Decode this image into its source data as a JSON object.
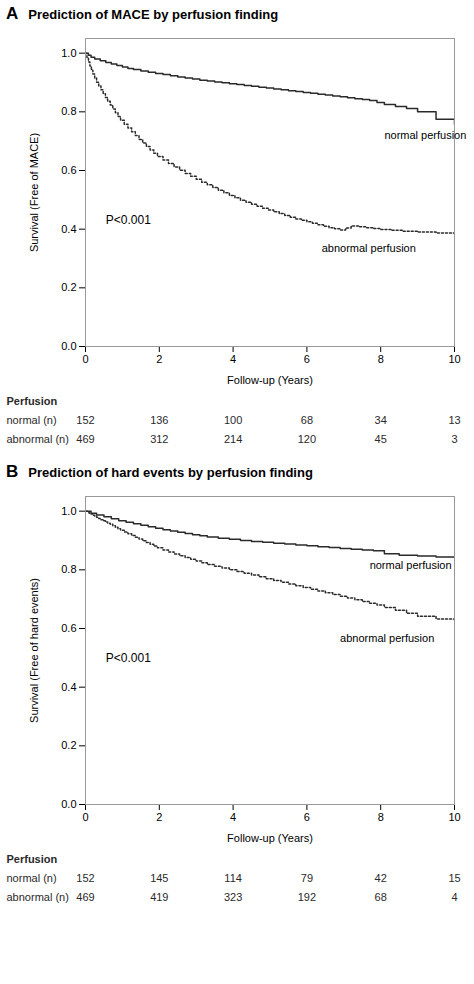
{
  "chart_data": [
    {
      "type": "line",
      "panel_label": "A",
      "title": "Prediction of MACE by perfusion finding",
      "xlabel": "Follow-up (Years)",
      "ylabel": "Survival (Free of MACE)",
      "xlim": [
        0,
        10
      ],
      "xticks": [
        0,
        2,
        4,
        6,
        8,
        10
      ],
      "ylim": [
        0.0,
        1.05
      ],
      "yticks": [
        {
          "value": 0.0,
          "label": "0.0"
        },
        0.2,
        0.4,
        0.6,
        0.8,
        {
          "value": 1.0,
          "label": "1.0"
        }
      ],
      "grid": false,
      "series": [
        {
          "color": "#2a2a2a",
          "line_style": "solid",
          "x": [
            0,
            0.08,
            0.15,
            0.25,
            0.4,
            0.55,
            0.7,
            0.85,
            1.0,
            1.15,
            1.3,
            1.5,
            1.7,
            1.9,
            2.1,
            2.3,
            2.5,
            2.7,
            2.9,
            3.1,
            3.3,
            3.5,
            3.7,
            3.9,
            4.1,
            4.3,
            4.5,
            4.7,
            4.9,
            5.1,
            5.3,
            5.5,
            5.7,
            5.9,
            6.1,
            6.3,
            6.5,
            6.7,
            6.9,
            7.1,
            7.3,
            7.5,
            7.7,
            7.9,
            8.1,
            8.4,
            8.7,
            9.0,
            9.5,
            10.0
          ],
          "values": [
            1.0,
            0.993,
            0.986,
            0.98,
            0.974,
            0.968,
            0.963,
            0.958,
            0.953,
            0.948,
            0.944,
            0.939,
            0.935,
            0.931,
            0.927,
            0.923,
            0.919,
            0.915,
            0.912,
            0.908,
            0.905,
            0.902,
            0.899,
            0.896,
            0.893,
            0.89,
            0.887,
            0.884,
            0.881,
            0.878,
            0.875,
            0.872,
            0.869,
            0.866,
            0.863,
            0.86,
            0.857,
            0.854,
            0.851,
            0.848,
            0.845,
            0.842,
            0.839,
            0.832,
            0.825,
            0.818,
            0.811,
            0.8,
            0.775,
            0.758
          ]
        },
        {
          "color": "#2a2a2a",
          "line_style": "dotted",
          "x": [
            0,
            0.04,
            0.08,
            0.12,
            0.16,
            0.2,
            0.25,
            0.3,
            0.36,
            0.42,
            0.48,
            0.54,
            0.6,
            0.67,
            0.74,
            0.81,
            0.88,
            0.95,
            1.05,
            1.15,
            1.25,
            1.35,
            1.45,
            1.55,
            1.65,
            1.75,
            1.85,
            1.95,
            2.1,
            2.25,
            2.4,
            2.55,
            2.7,
            2.85,
            3.0,
            3.15,
            3.3,
            3.45,
            3.6,
            3.75,
            3.9,
            4.05,
            4.2,
            4.35,
            4.5,
            4.65,
            4.8,
            4.95,
            5.1,
            5.25,
            5.4,
            5.55,
            5.7,
            5.85,
            6.0,
            6.15,
            6.3,
            6.45,
            6.6,
            6.75,
            6.9,
            7.05,
            7.2,
            7.4,
            7.6,
            7.8,
            8.0,
            8.3,
            8.6,
            9.0,
            9.5,
            10.0
          ],
          "values": [
            1.0,
            0.985,
            0.97,
            0.956,
            0.942,
            0.929,
            0.915,
            0.901,
            0.888,
            0.875,
            0.862,
            0.849,
            0.836,
            0.823,
            0.81,
            0.797,
            0.784,
            0.771,
            0.758,
            0.745,
            0.732,
            0.719,
            0.706,
            0.694,
            0.682,
            0.67,
            0.659,
            0.648,
            0.636,
            0.624,
            0.612,
            0.601,
            0.59,
            0.58,
            0.57,
            0.56,
            0.551,
            0.542,
            0.533,
            0.524,
            0.515,
            0.507,
            0.499,
            0.492,
            0.485,
            0.478,
            0.471,
            0.465,
            0.459,
            0.453,
            0.447,
            0.441,
            0.435,
            0.43,
            0.425,
            0.42,
            0.415,
            0.41,
            0.405,
            0.401,
            0.397,
            0.404,
            0.411,
            0.408,
            0.405,
            0.402,
            0.399,
            0.396,
            0.393,
            0.39,
            0.387,
            0.383
          ]
        }
      ],
      "annotations": [
        {
          "text": "P<0.001",
          "x": 0.55,
          "y": 0.43
        },
        {
          "text": "normal perfusion",
          "x": 8.1,
          "y": 0.72
        },
        {
          "text": "abnormal perfusion",
          "x": 6.4,
          "y": 0.335
        }
      ],
      "risk_table": {
        "title": "Perfusion",
        "x": [
          0,
          2,
          4,
          6,
          8,
          10
        ],
        "rows": [
          {
            "label": "normal (n)",
            "values": [
              152,
              136,
              100,
              68,
              34,
              13
            ]
          },
          {
            "label": "abnormal (n)",
            "values": [
              469,
              312,
              214,
              120,
              45,
              3
            ]
          }
        ]
      }
    },
    {
      "type": "line",
      "panel_label": "B",
      "title": "Prediction of hard events by perfusion finding",
      "xlabel": "Follow-up (Years)",
      "ylabel": "Survival (Free of hard events)",
      "xlim": [
        0,
        10
      ],
      "xticks": [
        0,
        2,
        4,
        6,
        8,
        10
      ],
      "ylim": [
        0.0,
        1.05
      ],
      "yticks": [
        {
          "value": 0.0,
          "label": "0.0"
        },
        0.2,
        0.4,
        0.6,
        0.8,
        {
          "value": 1.0,
          "label": "1.0"
        }
      ],
      "grid": false,
      "series": [
        {
          "color": "#2a2a2a",
          "line_style": "solid",
          "x": [
            0,
            0.15,
            0.3,
            0.5,
            0.7,
            0.9,
            1.1,
            1.3,
            1.5,
            1.7,
            1.9,
            2.1,
            2.3,
            2.5,
            2.7,
            2.9,
            3.1,
            3.3,
            3.6,
            3.9,
            4.2,
            4.5,
            4.8,
            5.1,
            5.4,
            5.7,
            6.0,
            6.3,
            6.6,
            6.9,
            7.2,
            7.5,
            7.8,
            8.1,
            8.5,
            9.0,
            9.5,
            10.0
          ],
          "values": [
            1.0,
            0.993,
            0.987,
            0.981,
            0.974,
            0.967,
            0.962,
            0.957,
            0.952,
            0.947,
            0.942,
            0.937,
            0.932,
            0.928,
            0.924,
            0.92,
            0.916,
            0.912,
            0.908,
            0.904,
            0.9,
            0.897,
            0.894,
            0.891,
            0.888,
            0.885,
            0.882,
            0.879,
            0.876,
            0.873,
            0.87,
            0.868,
            0.865,
            0.855,
            0.85,
            0.847,
            0.844,
            0.841
          ]
        },
        {
          "color": "#2a2a2a",
          "line_style": "dotted",
          "x": [
            0,
            0.05,
            0.1,
            0.15,
            0.2,
            0.25,
            0.3,
            0.36,
            0.42,
            0.48,
            0.54,
            0.6,
            0.67,
            0.74,
            0.81,
            0.88,
            0.95,
            1.05,
            1.15,
            1.25,
            1.35,
            1.45,
            1.55,
            1.65,
            1.75,
            1.85,
            1.95,
            2.1,
            2.25,
            2.4,
            2.55,
            2.7,
            2.85,
            3.0,
            3.15,
            3.3,
            3.5,
            3.7,
            3.9,
            4.1,
            4.3,
            4.5,
            4.7,
            4.9,
            5.1,
            5.3,
            5.5,
            5.7,
            5.9,
            6.1,
            6.3,
            6.5,
            6.7,
            6.9,
            7.1,
            7.3,
            7.5,
            7.7,
            7.9,
            8.1,
            8.4,
            8.7,
            9.0,
            9.5,
            10.0
          ],
          "values": [
            1.0,
            0.997,
            0.993,
            0.99,
            0.986,
            0.983,
            0.979,
            0.975,
            0.971,
            0.967,
            0.963,
            0.959,
            0.955,
            0.95,
            0.945,
            0.94,
            0.935,
            0.929,
            0.923,
            0.917,
            0.911,
            0.905,
            0.899,
            0.893,
            0.887,
            0.881,
            0.875,
            0.868,
            0.861,
            0.854,
            0.848,
            0.842,
            0.836,
            0.83,
            0.824,
            0.818,
            0.812,
            0.806,
            0.8,
            0.794,
            0.788,
            0.782,
            0.776,
            0.77,
            0.764,
            0.758,
            0.752,
            0.746,
            0.74,
            0.734,
            0.728,
            0.722,
            0.716,
            0.71,
            0.704,
            0.698,
            0.692,
            0.686,
            0.68,
            0.672,
            0.662,
            0.652,
            0.642,
            0.632,
            0.622
          ]
        }
      ],
      "annotations": [
        {
          "text": "P<0.001",
          "x": 0.55,
          "y": 0.5
        },
        {
          "text": "normal perfusion",
          "x": 7.7,
          "y": 0.815
        },
        {
          "text": "abnormal perfusion",
          "x": 6.9,
          "y": 0.565
        }
      ],
      "risk_table": {
        "title": "Perfusion",
        "x": [
          0,
          2,
          4,
          6,
          8,
          10
        ],
        "rows": [
          {
            "label": "normal (n)",
            "values": [
              152,
              145,
              114,
              79,
              42,
              15
            ]
          },
          {
            "label": "abnormal (n)",
            "values": [
              469,
              419,
              323,
              192,
              68,
              4
            ]
          }
        ]
      }
    }
  ]
}
